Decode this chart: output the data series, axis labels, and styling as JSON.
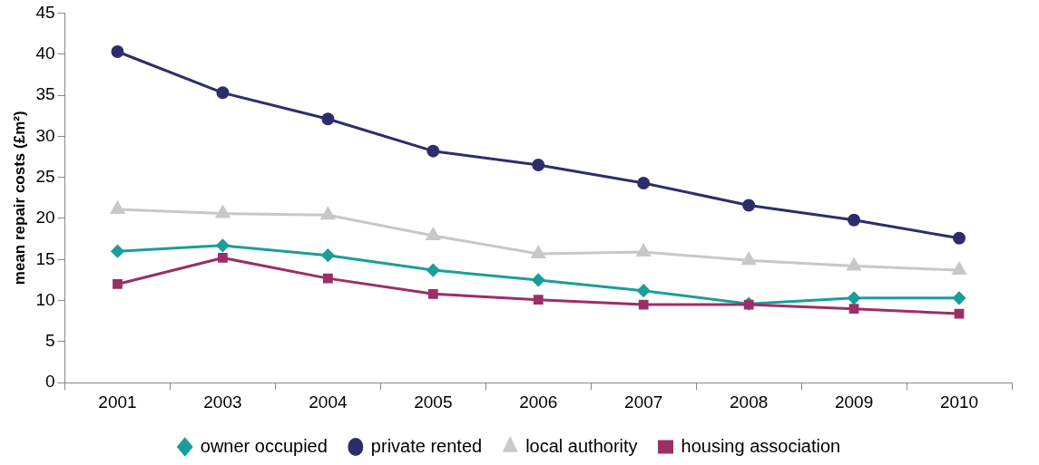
{
  "chart_data": {
    "type": "line",
    "ylabel": "mean repair costs (£m²)",
    "categories": [
      "2001",
      "2003",
      "2004",
      "2005",
      "2006",
      "2007",
      "2008",
      "2009",
      "2010"
    ],
    "series": [
      {
        "name": "owner occupied",
        "color": "#1a9e9a",
        "marker": "diamond",
        "values": [
          16.0,
          16.7,
          15.5,
          13.7,
          12.5,
          11.2,
          9.6,
          10.3,
          10.3
        ]
      },
      {
        "name": "private rented",
        "color": "#2e2d6b",
        "marker": "circle",
        "values": [
          40.3,
          35.3,
          32.1,
          28.2,
          26.5,
          24.3,
          21.6,
          19.8,
          17.6
        ]
      },
      {
        "name": "local authority",
        "color": "#c8c8c8",
        "marker": "triangle",
        "values": [
          21.1,
          20.6,
          20.4,
          17.9,
          15.7,
          15.9,
          14.9,
          14.2,
          13.7
        ]
      },
      {
        "name": "housing association",
        "color": "#9b2f66",
        "marker": "square",
        "values": [
          12.0,
          15.2,
          12.7,
          10.8,
          10.1,
          9.5,
          9.5,
          9.0,
          8.4
        ]
      }
    ],
    "ylim": [
      0,
      45
    ],
    "yticks": [
      0,
      5,
      10,
      15,
      20,
      25,
      30,
      35,
      40,
      45
    ],
    "grid": false,
    "legend": "bottom"
  }
}
